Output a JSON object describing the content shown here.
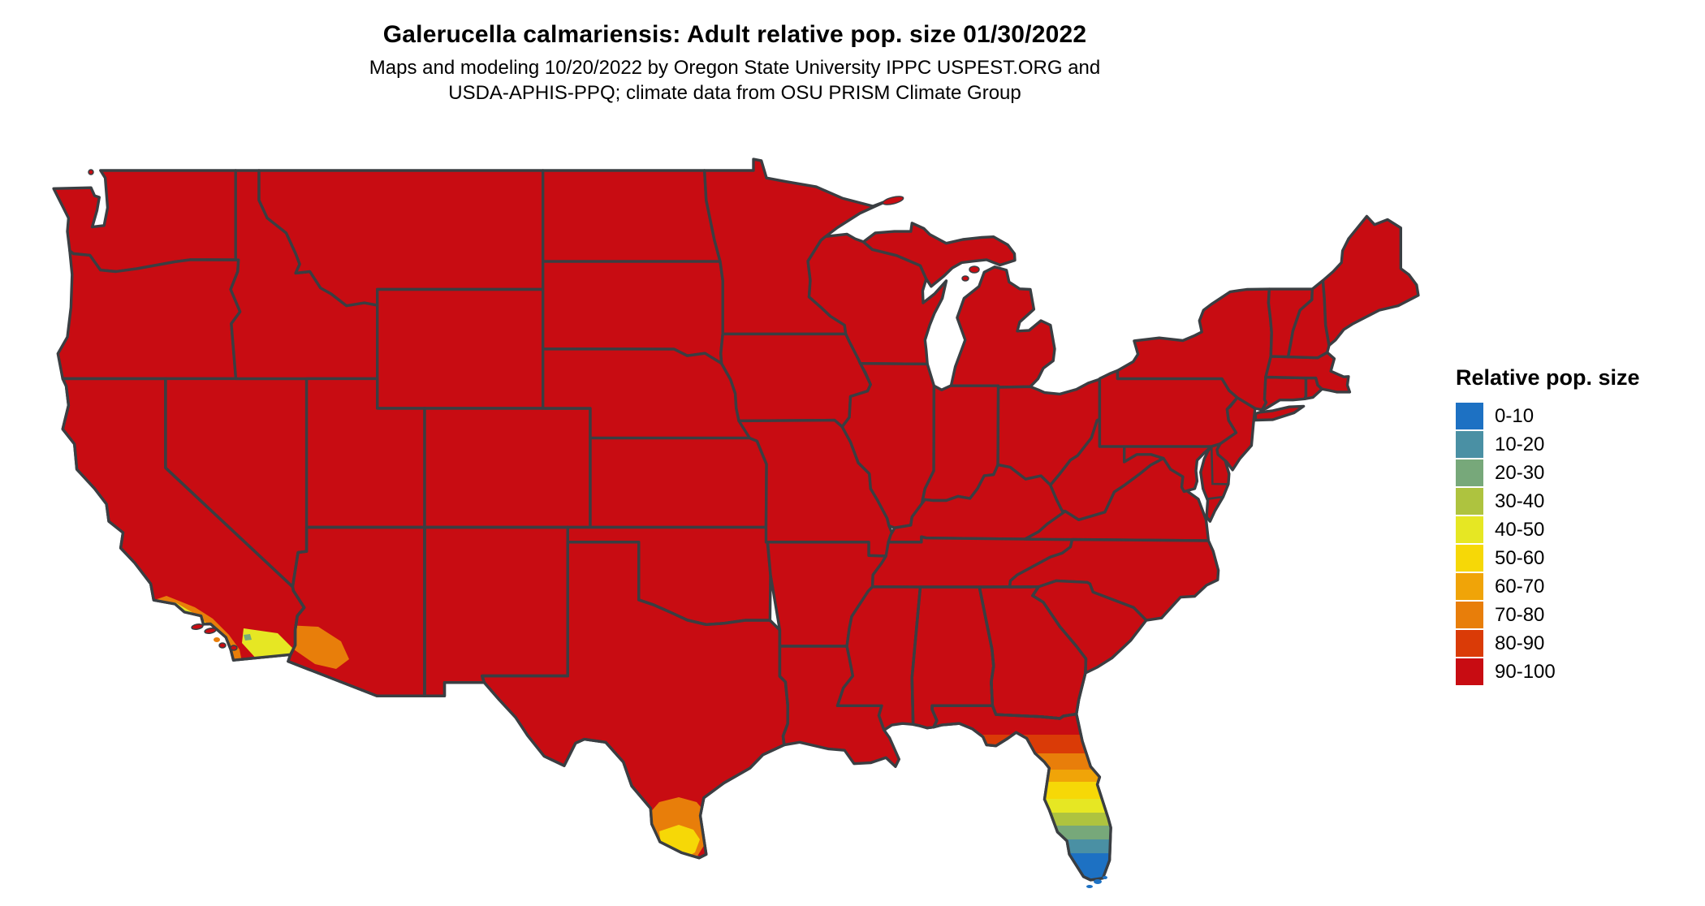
{
  "header": {
    "title": "Galerucella calmariensis: Adult relative pop. size 01/30/2022",
    "subtitle_line1": "Maps and modeling 10/20/2022 by Oregon State University IPPC USPEST.ORG and",
    "subtitle_line2": "USDA-APHIS-PPQ; climate data from OSU PRISM Climate Group"
  },
  "legend": {
    "title": "Relative pop. size",
    "items": [
      {
        "label": "0-10",
        "color": "#1d71c3"
      },
      {
        "label": "10-20",
        "color": "#4a90a4"
      },
      {
        "label": "20-30",
        "color": "#77a87a"
      },
      {
        "label": "30-40",
        "color": "#aec33f"
      },
      {
        "label": "40-50",
        "color": "#e6e723"
      },
      {
        "label": "50-60",
        "color": "#f6d807"
      },
      {
        "label": "60-70",
        "color": "#f0a408"
      },
      {
        "label": "70-80",
        "color": "#e87e0a"
      },
      {
        "label": "80-90",
        "color": "#da3b07"
      },
      {
        "label": "90-100",
        "color": "#c80c12"
      }
    ]
  },
  "map": {
    "land_fill": "#c80c12",
    "border_color": "#3a3e42",
    "background": "#ffffff"
  }
}
